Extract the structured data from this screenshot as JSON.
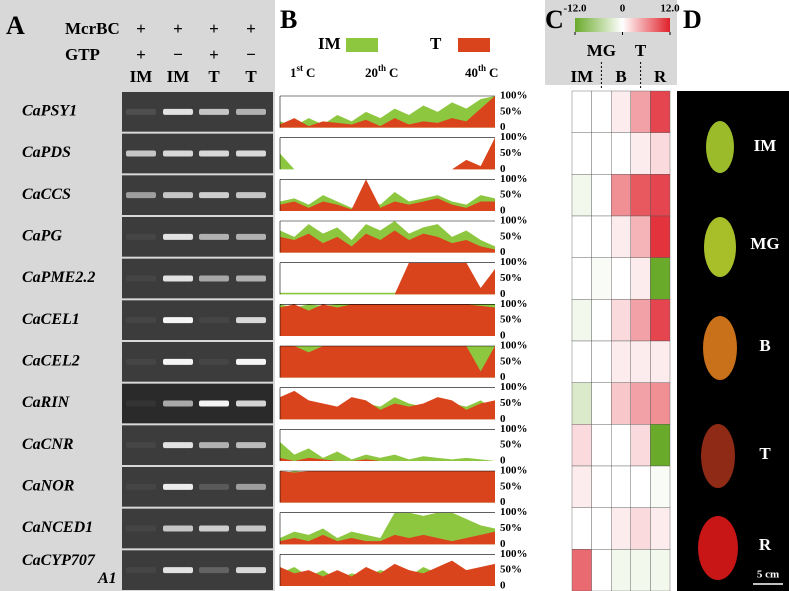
{
  "panel_a": {
    "label": "A",
    "treatments": [
      {
        "name": "McrBC",
        "marks": [
          "+",
          "+",
          "+",
          "+"
        ]
      },
      {
        "name": "GTP",
        "marks": [
          "+",
          "−",
          "+",
          "−"
        ]
      }
    ],
    "lanes": [
      "IM",
      "IM",
      "T",
      "T"
    ]
  },
  "panel_b": {
    "label": "B",
    "legend": [
      {
        "name": "IM",
        "color": "#8dc63f"
      },
      {
        "name": "T",
        "color": "#d9441c"
      }
    ],
    "positions": [
      {
        "num": "1",
        "sup": "st",
        "unit": "C"
      },
      {
        "num": "20",
        "sup": "th",
        "unit": "C"
      },
      {
        "num": "40",
        "sup": "th",
        "unit": "C"
      }
    ],
    "axis_labels": [
      "100%",
      "50%",
      "0"
    ],
    "ylim": [
      0,
      100
    ]
  },
  "panel_c": {
    "label": "C",
    "colorbar": {
      "lim": [
        -12,
        12
      ],
      "colors": [
        "#6aaa2a",
        "#ffffff",
        "#e0202a"
      ],
      "ticks": [
        {
          "value": -12,
          "label": "-12.0"
        },
        0,
        {
          "value": 12,
          "label": "12.0"
        }
      ]
    },
    "stages": [
      "IM",
      "MG",
      "B",
      "T",
      "R"
    ]
  },
  "panel_d": {
    "label": "D",
    "stages": [
      "IM",
      "MG",
      "B",
      "T",
      "R"
    ],
    "scale": "5 cm"
  },
  "rows": [
    {
      "gene": [
        "CaPSY1"
      ],
      "bands": [
        0.1,
        0.85,
        0.7,
        0.6
      ],
      "im": [
        20,
        5,
        30,
        10,
        40,
        20,
        50,
        30,
        60,
        40,
        70,
        50,
        80,
        60,
        90,
        100
      ],
      "t": [
        10,
        30,
        5,
        20,
        15,
        10,
        25,
        5,
        30,
        10,
        20,
        15,
        30,
        20,
        60,
        100
      ],
      "heat": [
        0,
        0,
        1,
        5,
        10
      ]
    },
    {
      "gene": [
        "CaPDS"
      ],
      "bands": [
        0.7,
        0.8,
        0.8,
        0.8
      ],
      "im": [
        50,
        0,
        0,
        0,
        0,
        0,
        0,
        0,
        0,
        0,
        0,
        0,
        0,
        0,
        10,
        0
      ],
      "t": [
        0,
        0,
        0,
        0,
        0,
        0,
        0,
        0,
        0,
        0,
        0,
        0,
        0,
        30,
        10,
        100
      ],
      "heat": [
        0,
        0,
        0,
        1,
        2
      ]
    },
    {
      "gene": [
        "CaCCS"
      ],
      "bands": [
        0.5,
        0.7,
        0.75,
        0.7
      ],
      "im": [
        30,
        40,
        20,
        50,
        30,
        10,
        40,
        20,
        60,
        30,
        40,
        50,
        30,
        20,
        50,
        40
      ],
      "t": [
        20,
        30,
        10,
        30,
        20,
        5,
        100,
        10,
        30,
        20,
        30,
        40,
        20,
        10,
        30,
        30
      ],
      "heat": [
        -1,
        0,
        6,
        9,
        10
      ]
    },
    {
      "gene": [
        "CaPG"
      ],
      "bands": [
        0.05,
        0.85,
        0.6,
        0.6
      ],
      "im": [
        70,
        50,
        90,
        60,
        80,
        40,
        90,
        70,
        100,
        60,
        80,
        90,
        50,
        70,
        40,
        20
      ],
      "t": [
        50,
        40,
        60,
        30,
        50,
        20,
        60,
        40,
        70,
        40,
        60,
        50,
        30,
        40,
        20,
        10
      ],
      "heat": [
        0,
        0,
        1,
        4,
        11
      ]
    },
    {
      "gene": [
        "CaPME2.2"
      ],
      "bands": [
        0.05,
        0.85,
        0.55,
        0.6
      ],
      "im": [
        5,
        5,
        5,
        5,
        5,
        5,
        5,
        5,
        5,
        5,
        10,
        10,
        10,
        10,
        10,
        60
      ],
      "t": [
        0,
        0,
        0,
        0,
        0,
        0,
        0,
        0,
        0,
        100,
        100,
        100,
        100,
        100,
        20,
        80
      ],
      "heat": [
        0,
        -0.5,
        0,
        1,
        -12
      ]
    },
    {
      "gene": [
        "CaCEL1"
      ],
      "bands": [
        0.05,
        0.95,
        0.05,
        0.8
      ],
      "im": [
        100,
        90,
        100,
        95,
        100,
        100,
        100,
        100,
        100,
        100,
        100,
        100,
        100,
        100,
        100,
        100
      ],
      "t": [
        90,
        100,
        80,
        100,
        90,
        100,
        100,
        100,
        100,
        100,
        100,
        100,
        100,
        100,
        95,
        90
      ],
      "heat": [
        -1,
        0,
        2,
        5,
        10
      ]
    },
    {
      "gene": [
        "CaCEL2"
      ],
      "bands": [
        0.05,
        0.95,
        0.05,
        0.95
      ],
      "im": [
        100,
        100,
        100,
        100,
        100,
        100,
        100,
        100,
        100,
        100,
        100,
        100,
        100,
        100,
        100,
        100
      ],
      "t": [
        100,
        100,
        80,
        100,
        100,
        100,
        100,
        100,
        100,
        100,
        100,
        100,
        100,
        100,
        20,
        100
      ],
      "heat": [
        0,
        0,
        1,
        1,
        1
      ]
    },
    {
      "gene": [
        "CaRIN"
      ],
      "bands": [
        0.05,
        0.6,
        0.95,
        0.8
      ],
      "im": [
        60,
        80,
        50,
        40,
        30,
        60,
        50,
        40,
        70,
        50,
        40,
        60,
        50,
        40,
        60,
        30
      ],
      "t": [
        70,
        90,
        60,
        50,
        40,
        70,
        60,
        30,
        50,
        40,
        50,
        70,
        60,
        30,
        50,
        60
      ],
      "heat": [
        -3,
        0,
        3,
        5,
        6
      ]
    },
    {
      "gene": [
        "CaCNR"
      ],
      "bands": [
        0.05,
        0.85,
        0.6,
        0.65
      ],
      "im": [
        60,
        20,
        40,
        10,
        30,
        5,
        20,
        10,
        20,
        5,
        15,
        10,
        5,
        10,
        5,
        0
      ],
      "t": [
        10,
        0,
        10,
        5,
        0,
        0,
        5,
        0,
        0,
        0,
        0,
        0,
        0,
        0,
        0,
        0
      ],
      "heat": [
        2,
        0,
        0,
        2,
        -12
      ]
    },
    {
      "gene": [
        "CaNOR"
      ],
      "bands": [
        0.05,
        0.9,
        0.15,
        0.5
      ],
      "im": [
        90,
        100,
        95,
        100,
        90,
        100,
        100,
        95,
        100,
        90,
        100,
        95,
        100,
        100,
        90,
        100
      ],
      "t": [
        100,
        95,
        100,
        100,
        100,
        100,
        100,
        100,
        100,
        100,
        100,
        100,
        100,
        100,
        100,
        100
      ],
      "heat": [
        1,
        0,
        0,
        0,
        -0.5
      ]
    },
    {
      "gene": [
        "CaNCED1"
      ],
      "bands": [
        0.05,
        0.7,
        0.75,
        0.7
      ],
      "im": [
        20,
        40,
        30,
        50,
        20,
        40,
        30,
        20,
        100,
        100,
        90,
        100,
        100,
        80,
        60,
        50
      ],
      "t": [
        10,
        20,
        10,
        30,
        10,
        20,
        10,
        10,
        30,
        20,
        30,
        20,
        10,
        20,
        30,
        40
      ],
      "heat": [
        0,
        0,
        1,
        2,
        1
      ]
    },
    {
      "gene": [
        "CaCYP707",
        "A1"
      ],
      "bands": [
        0.05,
        0.85,
        0.2,
        0.8
      ],
      "im": [
        40,
        60,
        30,
        50,
        20,
        40,
        30,
        50,
        40,
        30,
        60,
        40,
        70,
        40,
        50,
        60
      ],
      "t": [
        60,
        40,
        50,
        30,
        50,
        30,
        60,
        40,
        70,
        50,
        40,
        60,
        80,
        50,
        60,
        70
      ],
      "heat": [
        8,
        0,
        -1,
        -1,
        -1
      ]
    }
  ]
}
